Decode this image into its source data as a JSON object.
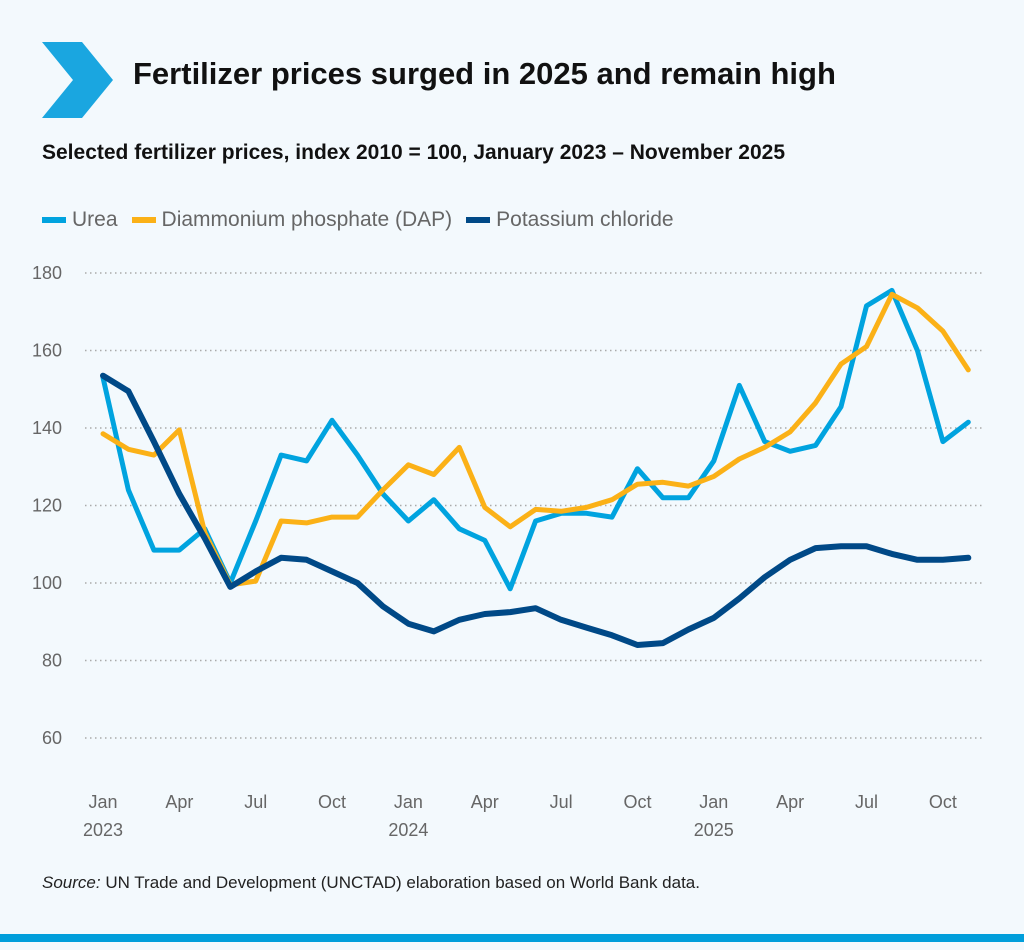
{
  "header": {
    "title": "Fertilizer prices surged in 2025 and remain high",
    "icon": "chevron-right-icon",
    "subtitle": "Selected fertilizer prices, index 2010 = 100, January 2023 – November 2025"
  },
  "footer": {
    "source_label": "Source:",
    "source_text": " UN Trade and Development (UNCTAD) elaboration based on World Bank data."
  },
  "colors": {
    "urea": "#00a3df",
    "dap": "#fbb117",
    "potash": "#004987",
    "accent": "#009edb"
  },
  "chart_data": {
    "type": "line",
    "title": "Selected fertilizer prices, index 2010 = 100, January 2023 – November 2025",
    "ylim": [
      60,
      180
    ],
    "yticks": [
      60,
      80,
      100,
      120,
      140,
      160,
      180
    ],
    "grid": true,
    "legend_placement": "top-left",
    "xticks": [
      {
        "i": 0,
        "label": "Jan",
        "year": "2023"
      },
      {
        "i": 3,
        "label": "Apr"
      },
      {
        "i": 6,
        "label": "Jul"
      },
      {
        "i": 9,
        "label": "Oct"
      },
      {
        "i": 12,
        "label": "Jan",
        "year": "2024"
      },
      {
        "i": 15,
        "label": "Apr"
      },
      {
        "i": 18,
        "label": "Jul"
      },
      {
        "i": 21,
        "label": "Oct"
      },
      {
        "i": 24,
        "label": "Jan",
        "year": "2025"
      },
      {
        "i": 27,
        "label": "Apr"
      },
      {
        "i": 30,
        "label": "Jul"
      },
      {
        "i": 33,
        "label": "Oct"
      }
    ],
    "x": [
      "2023-01",
      "2023-02",
      "2023-03",
      "2023-04",
      "2023-05",
      "2023-06",
      "2023-07",
      "2023-08",
      "2023-09",
      "2023-10",
      "2023-11",
      "2023-12",
      "2024-01",
      "2024-02",
      "2024-03",
      "2024-04",
      "2024-05",
      "2024-06",
      "2024-07",
      "2024-08",
      "2024-09",
      "2024-10",
      "2024-11",
      "2024-12",
      "2025-01",
      "2025-02",
      "2025-03",
      "2025-04",
      "2025-05",
      "2025-06",
      "2025-07",
      "2025-08",
      "2025-09",
      "2025-10",
      "2025-11"
    ],
    "series": [
      {
        "name": "Urea",
        "color": "#00a3df",
        "values": [
          153,
          124,
          108.5,
          108.5,
          114,
          100,
          116,
          133,
          131.5,
          142,
          133,
          123,
          116,
          121.5,
          114,
          111,
          98.5,
          116,
          118,
          118,
          117,
          129.5,
          122,
          122,
          131.5,
          151,
          136.5,
          134,
          135.5,
          145.5,
          171.5,
          175.5,
          160,
          136.5,
          141.5
        ]
      },
      {
        "name": "Diammonium phosphate (DAP)",
        "color": "#fbb117",
        "values": [
          138.5,
          134.5,
          133,
          139.5,
          113,
          99.5,
          100.5,
          116,
          115.5,
          117,
          117,
          124,
          130.5,
          128,
          135,
          119.5,
          114.5,
          119,
          118.5,
          119.5,
          121.5,
          125.5,
          126,
          125,
          127.5,
          132,
          135,
          139,
          146.5,
          156.5,
          161,
          174.5,
          171,
          165,
          155
        ]
      },
      {
        "name": "Potassium chloride",
        "color": "#004987",
        "values": [
          153.5,
          149.5,
          136.5,
          123,
          111.5,
          99,
          103,
          106.5,
          106,
          103,
          100,
          94,
          89.5,
          87.5,
          90.5,
          92,
          92.5,
          93.5,
          90.5,
          88.5,
          86.5,
          84,
          84.5,
          88,
          91,
          96,
          101.5,
          106,
          109,
          109.5,
          109.5,
          107.5,
          106,
          106,
          106.5
        ]
      }
    ]
  }
}
